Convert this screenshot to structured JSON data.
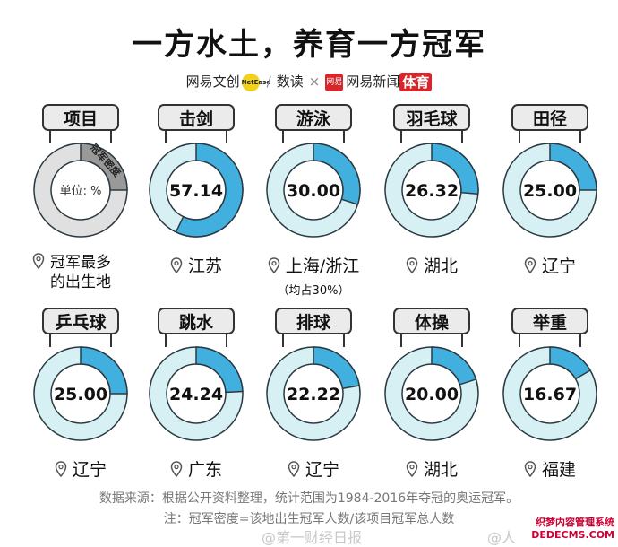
{
  "title": "一方水土，养育一方冠军",
  "brands": {
    "netease_culture": "网易文创",
    "netease_badge": "NetEase",
    "shudu": "数读",
    "cross": "×",
    "news_logo": "网易",
    "news": "网易新闻",
    "sports": "体育"
  },
  "legend_cell": {
    "label": "项目",
    "slice_text": "冠军密度",
    "unit": "单位: %",
    "location_line1": "冠军最多",
    "location_line2": "的出生地"
  },
  "colors": {
    "fill": "#42b0df",
    "rest": "#d7f0f3",
    "stroke": "#2b3a42",
    "legend_fill": "#999999",
    "legend_rest": "#e0e0e0"
  },
  "chart_data": {
    "type": "pie",
    "categories": [
      "击剑",
      "游泳",
      "羽毛球",
      "田径",
      "乒乓球",
      "跳水",
      "排球",
      "体操",
      "举重"
    ],
    "values": [
      57.14,
      30.0,
      26.32,
      25.0,
      25.0,
      24.24,
      22.22,
      20.0,
      16.67
    ],
    "value_labels": [
      "57.14",
      "30.00",
      "26.32",
      "25.00",
      "25.00",
      "24.24",
      "22.22",
      "20.00",
      "16.67"
    ],
    "locations": [
      "江苏",
      "上海/浙江",
      "湖北",
      "辽宁",
      "辽宁",
      "广东",
      "辽宁",
      "湖北",
      "福建"
    ],
    "location_notes": [
      "",
      "（均占30%）",
      "",
      "",
      "",
      "",
      "",
      "",
      ""
    ]
  },
  "footer": {
    "source": "数据来源：根据公开资料整理，统计范围为1984-2016年夺冠的奥运冠军。",
    "note": "注：冠军密度=该地出生冠军人数/该项目冠军总人数"
  },
  "watermark": {
    "left": "@第一财经日报",
    "right": "@人",
    "corner1": "织梦内容管理系统",
    "corner2": "DEDECMS.COM"
  }
}
